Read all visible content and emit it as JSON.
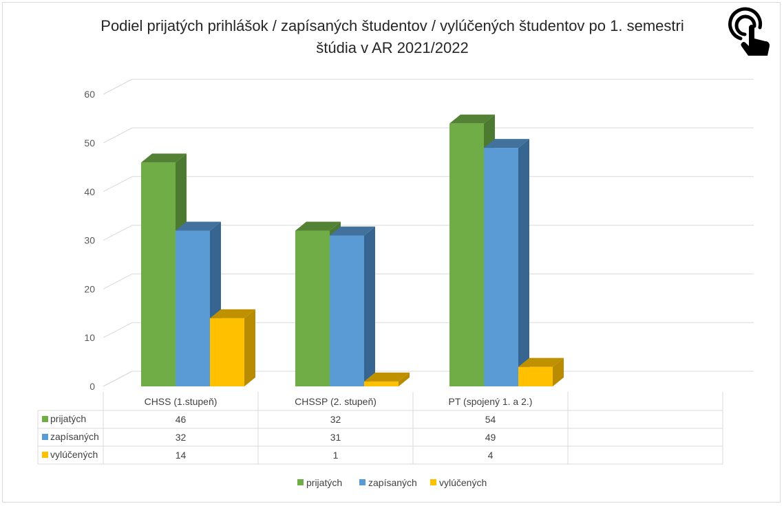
{
  "chart_data": {
    "type": "bar",
    "title": "Podiel prijatých prihlášok / zapísaných študentov / vylúčených študentov po 1. semestri štúdia v AR 2021/2022",
    "categories": [
      "CHSS (1.stupeň)",
      "CHSSP (2. stupeň)",
      "PT (spojený 1. a 2.)"
    ],
    "series": [
      {
        "name": "prijatých",
        "values": [
          46,
          32,
          54
        ],
        "color": "#70ad47",
        "side": "#4d7a31",
        "top": "#548235"
      },
      {
        "name": "zapísaných",
        "values": [
          32,
          31,
          49
        ],
        "color": "#5b9bd5",
        "side": "#376591",
        "top": "#41719c"
      },
      {
        "name": "vylúčených",
        "values": [
          14,
          1,
          4
        ],
        "color": "#ffc000",
        "side": "#b98b00",
        "top": "#bf9000"
      }
    ],
    "yticks": [
      0,
      10,
      20,
      30,
      40,
      50,
      60
    ],
    "ylim": [
      0,
      60
    ],
    "grid": true,
    "legend_position": "bottom",
    "data_table": true,
    "chart_style": "3d-clustered-column"
  },
  "icons": {
    "corner": "touch-gesture-icon"
  }
}
